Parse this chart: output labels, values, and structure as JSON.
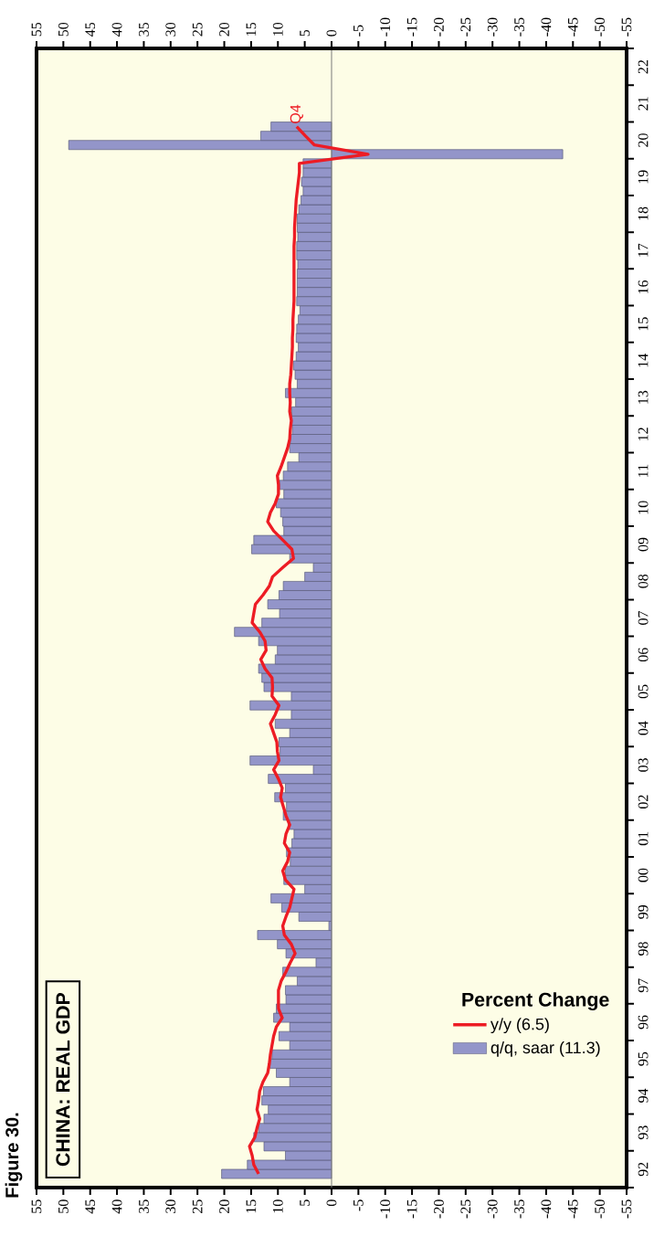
{
  "chart_data": {
    "type": "bar",
    "orientation": "horizontal",
    "title": "CHINA: REAL GDP",
    "legend_title": "Percent Change",
    "annotations": [
      "Figure 30.",
      {
        "text": "Q4",
        "x": 6.5,
        "y": "2020-11-15"
      }
    ],
    "x": [
      "1992-05-15",
      "1992-08-15",
      "1992-11-15",
      "1993-02-15",
      "1993-05-15",
      "1993-08-15",
      "1993-11-15",
      "1994-02-15",
      "1994-05-15",
      "1994-08-15",
      "1994-11-15",
      "1995-02-15",
      "1995-05-15",
      "1995-08-15",
      "1995-11-15",
      "1996-02-15",
      "1996-05-15",
      "1996-08-15",
      "1996-11-15",
      "1997-02-15",
      "1997-05-15",
      "1997-08-15",
      "1997-11-15",
      "1998-02-15",
      "1998-05-15",
      "1998-08-15",
      "1998-11-15",
      "1999-02-15",
      "1999-05-15",
      "1999-08-15",
      "1999-11-15",
      "2000-02-15",
      "2000-05-15",
      "2000-08-15",
      "2000-11-15",
      "2001-02-15",
      "2001-05-15",
      "2001-08-15",
      "2001-11-15",
      "2002-02-15",
      "2002-05-15",
      "2002-08-15",
      "2002-11-15",
      "2003-02-15",
      "2003-05-15",
      "2003-08-15",
      "2003-11-15",
      "2004-02-15",
      "2004-05-15",
      "2004-08-15",
      "2004-11-15",
      "2005-02-15",
      "2005-05-15",
      "2005-08-15",
      "2005-11-15",
      "2006-02-15",
      "2006-05-15",
      "2006-08-15",
      "2006-11-15",
      "2007-02-15",
      "2007-05-15",
      "2007-08-15",
      "2007-11-15",
      "2008-02-15",
      "2008-05-15",
      "2008-08-15",
      "2008-11-15",
      "2009-02-15",
      "2009-05-15",
      "2009-08-15",
      "2009-11-15",
      "2010-02-15",
      "2010-05-15",
      "2010-08-15",
      "2010-11-15",
      "2011-02-15",
      "2011-05-15",
      "2011-08-15",
      "2011-11-15",
      "2012-02-15",
      "2012-05-15",
      "2012-08-15",
      "2012-11-15",
      "2013-02-15",
      "2013-05-15",
      "2013-08-15",
      "2013-11-15",
      "2014-02-15",
      "2014-05-15",
      "2014-08-15",
      "2014-11-15",
      "2015-02-15",
      "2015-05-15",
      "2015-08-15",
      "2015-11-15",
      "2016-02-15",
      "2016-05-15",
      "2016-08-15",
      "2016-11-15",
      "2017-02-15",
      "2017-05-15",
      "2017-08-15",
      "2017-11-15",
      "2018-02-15",
      "2018-05-15",
      "2018-08-15",
      "2018-11-15",
      "2019-02-15",
      "2019-05-15",
      "2019-08-15",
      "2019-11-15",
      "2020-02-15",
      "2020-05-15",
      "2020-08-15",
      "2020-11-15"
    ],
    "series": [
      {
        "name": "y/y (6.5)",
        "type": "line",
        "color": "#ed1c24",
        "values": [
          13.6,
          14.5,
          14.8,
          15.3,
          14.3,
          13.9,
          13.4,
          13.9,
          13.6,
          13.4,
          12.8,
          11.9,
          11.6,
          11.4,
          11.1,
          10.8,
          10.3,
          9.2,
          9.9,
          9.9,
          9.9,
          9.4,
          8.5,
          7.7,
          6.8,
          7.5,
          8.8,
          9.1,
          8.5,
          7.8,
          7.4,
          7.0,
          8.6,
          9.1,
          8.2,
          7.8,
          8.8,
          8.5,
          7.8,
          8.5,
          9.0,
          9.5,
          9.2,
          9.9,
          10.8,
          9.8,
          10.1,
          10.2,
          10.8,
          11.4,
          10.5,
          9.8,
          11.1,
          11.0,
          11.1,
          12.4,
          13.2,
          12.2,
          12.4,
          13.4,
          14.8,
          14.5,
          14.2,
          12.8,
          11.6,
          11.0,
          9.1,
          7.1,
          7.4,
          9.1,
          10.8,
          11.9,
          11.4,
          10.5,
          9.9,
          9.9,
          10.1,
          9.4,
          8.8,
          8.2,
          7.8,
          7.7,
          7.5,
          7.8,
          7.7,
          7.8,
          7.8,
          7.6,
          7.5,
          7.4,
          7.3,
          7.3,
          7.2,
          7.2,
          7.1,
          7.0,
          7.0,
          7.0,
          7.0,
          7.0,
          7.0,
          7.0,
          6.9,
          6.9,
          6.8,
          6.7,
          6.6,
          6.4,
          6.2,
          6.0,
          6.0,
          -6.8,
          3.2,
          4.9,
          6.5
        ]
      },
      {
        "name": "q/q, saar (11.3)",
        "color": "#9395c9",
        "values": [
          20.5,
          15.7,
          8.6,
          12.6,
          14.5,
          13.6,
          12.6,
          11.8,
          13.0,
          12.7,
          7.8,
          10.3,
          11.5,
          11.1,
          7.8,
          9.8,
          7.8,
          10.8,
          10.3,
          8.5,
          8.6,
          6.4,
          9.1,
          2.9,
          8.5,
          10.1,
          13.8,
          0.5,
          6.1,
          9.3,
          11.3,
          5.0,
          8.9,
          8.6,
          7.7,
          8.4,
          7.4,
          7.0,
          8.1,
          9.0,
          8.4,
          10.6,
          8.6,
          11.8,
          3.4,
          15.2,
          9.6,
          9.8,
          7.8,
          10.5,
          7.5,
          15.2,
          7.5,
          12.6,
          13.0,
          13.6,
          10.5,
          10.1,
          13.6,
          18.1,
          13.0,
          9.7,
          11.9,
          9.8,
          9.0,
          5.0,
          3.4,
          7.8,
          14.9,
          14.5,
          8.9,
          9.1,
          9.5,
          10.3,
          8.9,
          9.7,
          9.0,
          8.2,
          6.1,
          7.8,
          7.7,
          7.3,
          7.4,
          7.4,
          6.7,
          8.6,
          6.4,
          6.8,
          7.1,
          6.6,
          6.2,
          6.6,
          6.5,
          6.2,
          5.9,
          6.5,
          6.4,
          6.4,
          6.4,
          6.3,
          6.5,
          6.5,
          6.3,
          6.4,
          6.4,
          6.1,
          5.7,
          5.3,
          5.6,
          5.3,
          5.3,
          -43.1,
          49.0,
          13.2,
          11.3
        ]
      }
    ],
    "ylim": [
      "1992",
      "2023"
    ],
    "yticks": [
      {
        "value": "1992",
        "label": null
      },
      {
        "value": "1992-07-01",
        "label": "92"
      },
      {
        "value": "1993",
        "label": null
      },
      {
        "value": "1993-07-01",
        "label": "93"
      },
      {
        "value": "1994",
        "label": null
      },
      {
        "value": "1994-07-01",
        "label": "94"
      },
      {
        "value": "1995",
        "label": null
      },
      {
        "value": "1995-07-01",
        "label": "95"
      },
      {
        "value": "1996",
        "label": null
      },
      {
        "value": "1996-07-01",
        "label": "96"
      },
      {
        "value": "1997",
        "label": null
      },
      {
        "value": "1997-07-01",
        "label": "97"
      },
      {
        "value": "1998",
        "label": null
      },
      {
        "value": "1998-07-01",
        "label": "98"
      },
      {
        "value": "1999",
        "label": null
      },
      {
        "value": "1999-07-01",
        "label": "99"
      },
      {
        "value": "2000",
        "label": null
      },
      {
        "value": "2000-07-01",
        "label": "00"
      },
      {
        "value": "2001",
        "label": null
      },
      {
        "value": "2001-07-01",
        "label": "01"
      },
      {
        "value": "2002",
        "label": null
      },
      {
        "value": "2002-07-01",
        "label": "02"
      },
      {
        "value": "2003",
        "label": null
      },
      {
        "value": "2003-07-01",
        "label": "03"
      },
      {
        "value": "2004",
        "label": null
      },
      {
        "value": "2004-07-01",
        "label": "04"
      },
      {
        "value": "2005",
        "label": null
      },
      {
        "value": "2005-07-01",
        "label": "05"
      },
      {
        "value": "2006",
        "label": null
      },
      {
        "value": "2006-07-01",
        "label": "06"
      },
      {
        "value": "2007",
        "label": null
      },
      {
        "value": "2007-07-01",
        "label": "07"
      },
      {
        "value": "2008",
        "label": null
      },
      {
        "value": "2008-07-01",
        "label": "08"
      },
      {
        "value": "2009",
        "label": null
      },
      {
        "value": "2009-07-01",
        "label": "09"
      },
      {
        "value": "2010",
        "label": null
      },
      {
        "value": "2010-07-01",
        "label": "10"
      },
      {
        "value": "2011",
        "label": null
      },
      {
        "value": "2011-07-01",
        "label": "11"
      },
      {
        "value": "2012",
        "label": null
      },
      {
        "value": "2012-07-01",
        "label": "12"
      },
      {
        "value": "2013",
        "label": null
      },
      {
        "value": "2013-07-01",
        "label": "13"
      },
      {
        "value": "2014",
        "label": null
      },
      {
        "value": "2014-07-01",
        "label": "14"
      },
      {
        "value": "2015",
        "label": null
      },
      {
        "value": "2015-07-01",
        "label": "15"
      },
      {
        "value": "2016",
        "label": null
      },
      {
        "value": "2016-07-01",
        "label": "16"
      },
      {
        "value": "2017",
        "label": null
      },
      {
        "value": "2017-07-01",
        "label": "17"
      },
      {
        "value": "2018",
        "label": null
      },
      {
        "value": "2018-07-01",
        "label": "18"
      },
      {
        "value": "2019",
        "label": null
      },
      {
        "value": "2019-07-01",
        "label": "19"
      },
      {
        "value": "2020",
        "label": null
      },
      {
        "value": "2020-07-01",
        "label": "20"
      },
      {
        "value": "2021",
        "label": null
      },
      {
        "value": "2021-07-01",
        "label": "21"
      },
      {
        "value": "2022",
        "label": null
      },
      {
        "value": "2022-07-01",
        "label": "22"
      },
      {
        "value": "2023",
        "label": null
      }
    ],
    "xlim": [
      55,
      -55
    ],
    "xticks": [
      55,
      50,
      45,
      40,
      35,
      30,
      25,
      20,
      15,
      10,
      5,
      0,
      -5,
      -10,
      -15,
      -20,
      -25,
      -30,
      -35,
      -40,
      -45,
      -50,
      -55
    ],
    "x2lim": [
      55,
      -55
    ],
    "x2ticks": [
      55,
      50,
      45,
      40,
      35,
      30,
      25,
      20,
      15,
      10,
      5,
      0,
      -5,
      -10,
      -15,
      -20,
      -25,
      -30,
      -35,
      -40,
      -45,
      -50,
      -55
    ],
    "ref_lines": [
      {
        "axis": "x",
        "value": 0,
        "color": "#808080"
      }
    ],
    "legend": "bottom right"
  }
}
